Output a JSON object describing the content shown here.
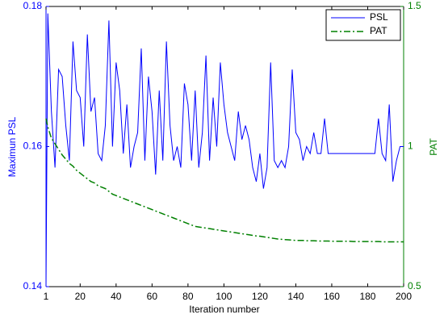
{
  "chart_data": {
    "type": "line",
    "xlabel": "Iteration number",
    "ylabel": "Maximun PSL",
    "y2label": "PAT",
    "x": [
      1,
      2,
      4,
      6,
      8,
      10,
      12,
      14,
      16,
      18,
      20,
      22,
      24,
      26,
      28,
      30,
      32,
      34,
      36,
      38,
      40,
      42,
      44,
      46,
      48,
      50,
      52,
      54,
      56,
      58,
      60,
      62,
      64,
      66,
      68,
      70,
      72,
      74,
      76,
      78,
      80,
      82,
      84,
      86,
      88,
      90,
      92,
      94,
      96,
      98,
      100,
      102,
      104,
      106,
      108,
      110,
      112,
      114,
      116,
      118,
      120,
      122,
      124,
      126,
      128,
      130,
      132,
      134,
      136,
      138,
      140,
      142,
      144,
      146,
      148,
      150,
      152,
      154,
      156,
      158,
      160,
      162,
      164,
      166,
      168,
      170,
      172,
      174,
      176,
      178,
      180,
      182,
      184,
      186,
      188,
      190,
      192,
      194,
      196,
      198,
      200
    ],
    "series": [
      {
        "name": "PSL",
        "color": "#0000ff",
        "dash": "solid",
        "values": [
          0.14,
          0.179,
          0.165,
          0.157,
          0.171,
          0.17,
          0.163,
          0.158,
          0.175,
          0.168,
          0.167,
          0.16,
          0.176,
          0.165,
          0.167,
          0.159,
          0.158,
          0.163,
          0.178,
          0.16,
          0.172,
          0.168,
          0.159,
          0.166,
          0.157,
          0.16,
          0.162,
          0.174,
          0.158,
          0.17,
          0.165,
          0.156,
          0.168,
          0.158,
          0.175,
          0.163,
          0.158,
          0.16,
          0.157,
          0.169,
          0.166,
          0.158,
          0.168,
          0.157,
          0.162,
          0.173,
          0.158,
          0.167,
          0.16,
          0.172,
          0.166,
          0.162,
          0.16,
          0.158,
          0.165,
          0.161,
          0.163,
          0.161,
          0.157,
          0.155,
          0.159,
          0.154,
          0.157,
          0.172,
          0.158,
          0.157,
          0.158,
          0.157,
          0.16,
          0.171,
          0.162,
          0.161,
          0.158,
          0.16,
          0.159,
          0.162,
          0.159,
          0.159,
          0.164,
          0.159,
          0.159,
          0.159,
          0.159,
          0.159,
          0.159,
          0.159,
          0.159,
          0.159,
          0.159,
          0.159,
          0.159,
          0.159,
          0.159,
          0.164,
          0.159,
          0.158,
          0.166,
          0.155,
          0.158,
          0.16,
          0.16
        ]
      },
      {
        "name": "PAT",
        "color": "#008000",
        "dash": "dashdot",
        "axis": "y2",
        "values": [
          1.1,
          1.07,
          1.03,
          1.01,
          0.99,
          0.97,
          0.955,
          0.94,
          0.93,
          0.915,
          0.905,
          0.895,
          0.885,
          0.875,
          0.87,
          0.86,
          0.855,
          0.85,
          0.84,
          0.83,
          0.825,
          0.82,
          0.815,
          0.81,
          0.805,
          0.8,
          0.795,
          0.79,
          0.785,
          0.78,
          0.775,
          0.77,
          0.765,
          0.76,
          0.755,
          0.75,
          0.745,
          0.74,
          0.735,
          0.73,
          0.725,
          0.72,
          0.715,
          0.713,
          0.711,
          0.709,
          0.707,
          0.705,
          0.703,
          0.701,
          0.699,
          0.697,
          0.695,
          0.693,
          0.691,
          0.689,
          0.687,
          0.685,
          0.683,
          0.681,
          0.68,
          0.678,
          0.676,
          0.674,
          0.672,
          0.67,
          0.669,
          0.668,
          0.667,
          0.666,
          0.665,
          0.665,
          0.665,
          0.664,
          0.664,
          0.664,
          0.663,
          0.663,
          0.663,
          0.663,
          0.662,
          0.662,
          0.662,
          0.662,
          0.662,
          0.662,
          0.661,
          0.661,
          0.661,
          0.661,
          0.661,
          0.661,
          0.661,
          0.661,
          0.66,
          0.66,
          0.66,
          0.66,
          0.66,
          0.66,
          0.66
        ]
      }
    ],
    "xlim": [
      1,
      200
    ],
    "xticks": [
      1,
      20,
      40,
      60,
      80,
      100,
      120,
      140,
      160,
      180,
      200
    ],
    "ylim": [
      0.14,
      0.18
    ],
    "yticks": [
      0.14,
      0.16,
      0.18
    ],
    "y2lim": [
      0.5,
      1.5
    ],
    "y2ticks": [
      0.5,
      1,
      1.5
    ],
    "legend": "upper right"
  }
}
